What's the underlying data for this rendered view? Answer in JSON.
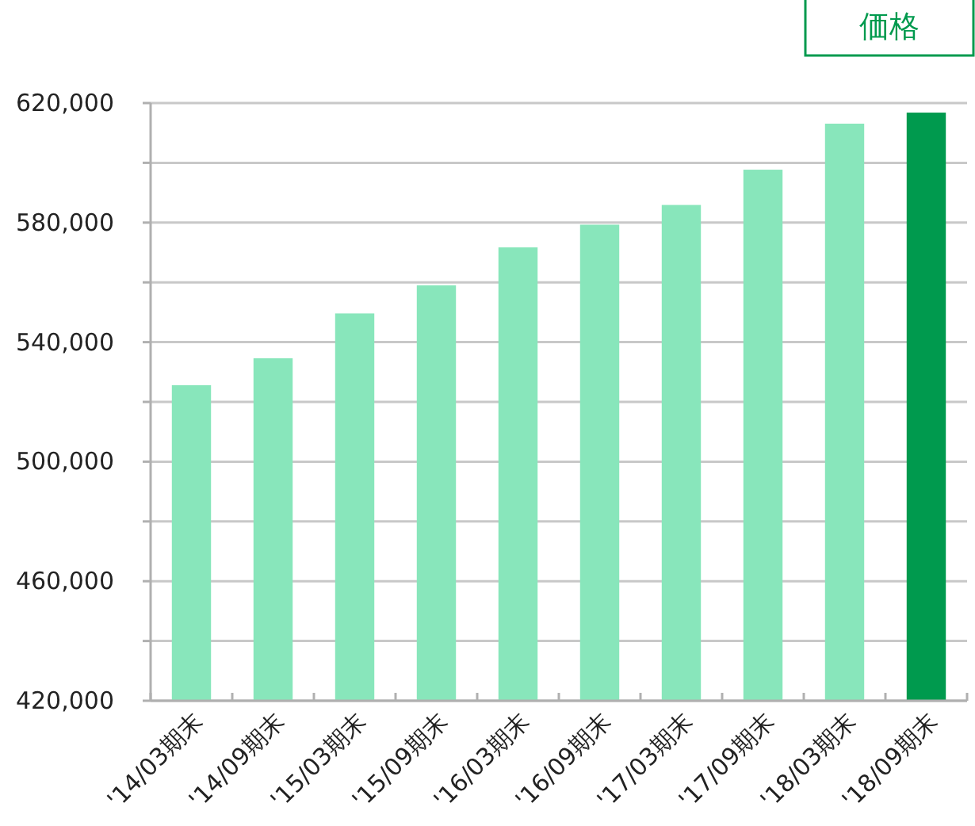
{
  "chart_data": {
    "type": "bar",
    "categories": [
      "'14/03期末",
      "'14/09期末",
      "'15/03期末",
      "'15/09期末",
      "'16/03期末",
      "'16/09期末",
      "'17/03期末",
      "'17/09期末",
      "'18/03期末",
      "'18/09期末"
    ],
    "values": [
      525600,
      534600,
      549600,
      559000,
      571700,
      579300,
      585900,
      597700,
      613100,
      616800
    ],
    "colors": [
      "#88e6bb",
      "#88e6bb",
      "#88e6bb",
      "#88e6bb",
      "#88e6bb",
      "#88e6bb",
      "#88e6bb",
      "#88e6bb",
      "#88e6bb",
      "#009a4e"
    ],
    "ylim": [
      420000,
      620000
    ],
    "yticks": [
      {
        "value": 420000,
        "label": "420,000"
      },
      {
        "value": 440000,
        "label": null
      },
      {
        "value": 460000,
        "label": "460,000"
      },
      {
        "value": 480000,
        "label": null
      },
      {
        "value": 500000,
        "label": "500,000"
      },
      {
        "value": 520000,
        "label": null
      },
      {
        "value": 540000,
        "label": "540,000"
      },
      {
        "value": 560000,
        "label": null
      },
      {
        "value": 580000,
        "label": "580,000"
      },
      {
        "value": 600000,
        "label": null
      },
      {
        "value": 620000,
        "label": "620,000"
      }
    ],
    "grid": "y",
    "annotations": [
      "価格"
    ]
  }
}
